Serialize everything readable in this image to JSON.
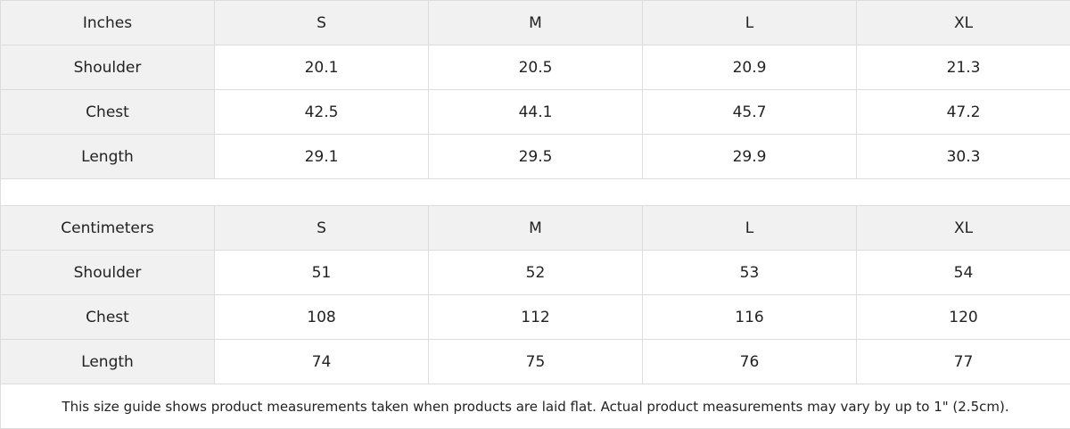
{
  "inches": {
    "header": [
      "Inches",
      "S",
      "M",
      "L",
      "XL"
    ],
    "rows": [
      [
        "Shoulder",
        "20.1",
        "20.5",
        "20.9",
        "21.3"
      ],
      [
        "Chest",
        "42.5",
        "44.1",
        "45.7",
        "47.2"
      ],
      [
        "Length",
        "29.1",
        "29.5",
        "29.9",
        "30.3"
      ]
    ]
  },
  "centimeters": {
    "header": [
      "Centimeters",
      "S",
      "M",
      "L",
      "XL"
    ],
    "rows": [
      [
        "Shoulder",
        "51",
        "52",
        "53",
        "54"
      ],
      [
        "Chest",
        "108",
        "112",
        "116",
        "120"
      ],
      [
        "Length",
        "74",
        "75",
        "76",
        "77"
      ]
    ]
  },
  "note": "This size guide shows product measurements taken when products are laid flat.  Actual product measurements may vary by up to 1\" (2.5cm)."
}
